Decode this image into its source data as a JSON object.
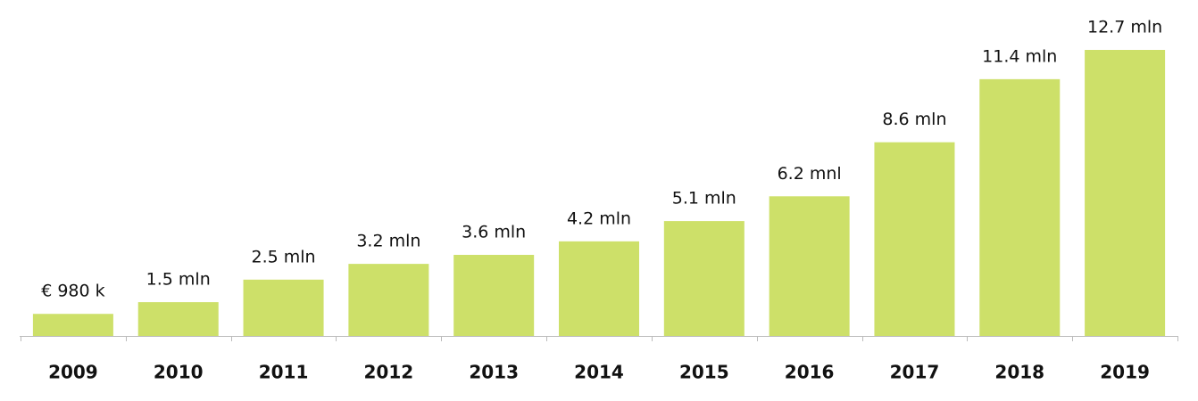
{
  "chart_data": {
    "type": "bar",
    "categories": [
      "2009",
      "2010",
      "2011",
      "2012",
      "2013",
      "2014",
      "2015",
      "2016",
      "2017",
      "2018",
      "2019"
    ],
    "values": [
      0.98,
      1.5,
      2.5,
      3.2,
      3.6,
      4.2,
      5.1,
      6.2,
      8.6,
      11.4,
      12.7
    ],
    "value_labels": [
      "€ 980 k",
      "1.5 mln",
      "2.5 mln",
      "3.2 mln",
      "3.6 mln",
      "4.2 mln",
      "5.1 mln",
      "6.2 mnl",
      "8.6 mln",
      "11.4 mln",
      "12.7 mln"
    ],
    "color": "#cde069"
  }
}
